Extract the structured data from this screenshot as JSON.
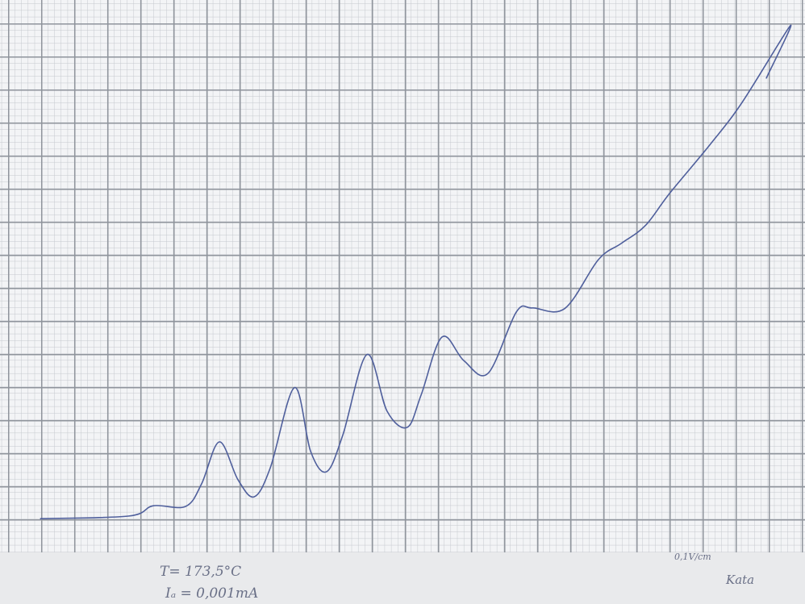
{
  "chart_data": {
    "type": "line",
    "annotations": [
      "T= 173,5°C",
      "Iₐ = 0,001mA",
      "0,1V/cm",
      "Kata"
    ],
    "x": [
      0.98,
      3.66,
      4.39,
      5.37,
      5.85,
      6.39,
      6.95,
      7.44,
      7.93,
      8.66,
      9.15,
      9.63,
      10.12,
      10.85,
      11.46,
      12.07,
      12.49,
      13.12,
      13.78,
      14.51,
      15.37,
      15.85,
      16.83,
      17.85,
      18.54,
      19.27,
      20.0,
      21.22,
      22.2,
      23.66,
      22.93
    ],
    "series": [
      {
        "color": "#4f5f9c",
        "values": [
          1.02,
          1.1,
          1.41,
          1.39,
          2.07,
          3.34,
          2.2,
          1.68,
          2.56,
          4.98,
          3.05,
          2.44,
          3.54,
          5.98,
          4.27,
          3.78,
          4.76,
          6.51,
          5.8,
          5.41,
          7.27,
          7.39,
          7.37,
          8.85,
          9.34,
          9.88,
          10.85,
          12.32,
          13.61,
          15.93,
          14.34
        ]
      }
    ],
    "xlim": [
      0,
      24
    ],
    "ylim": [
      0,
      16.7
    ]
  }
}
